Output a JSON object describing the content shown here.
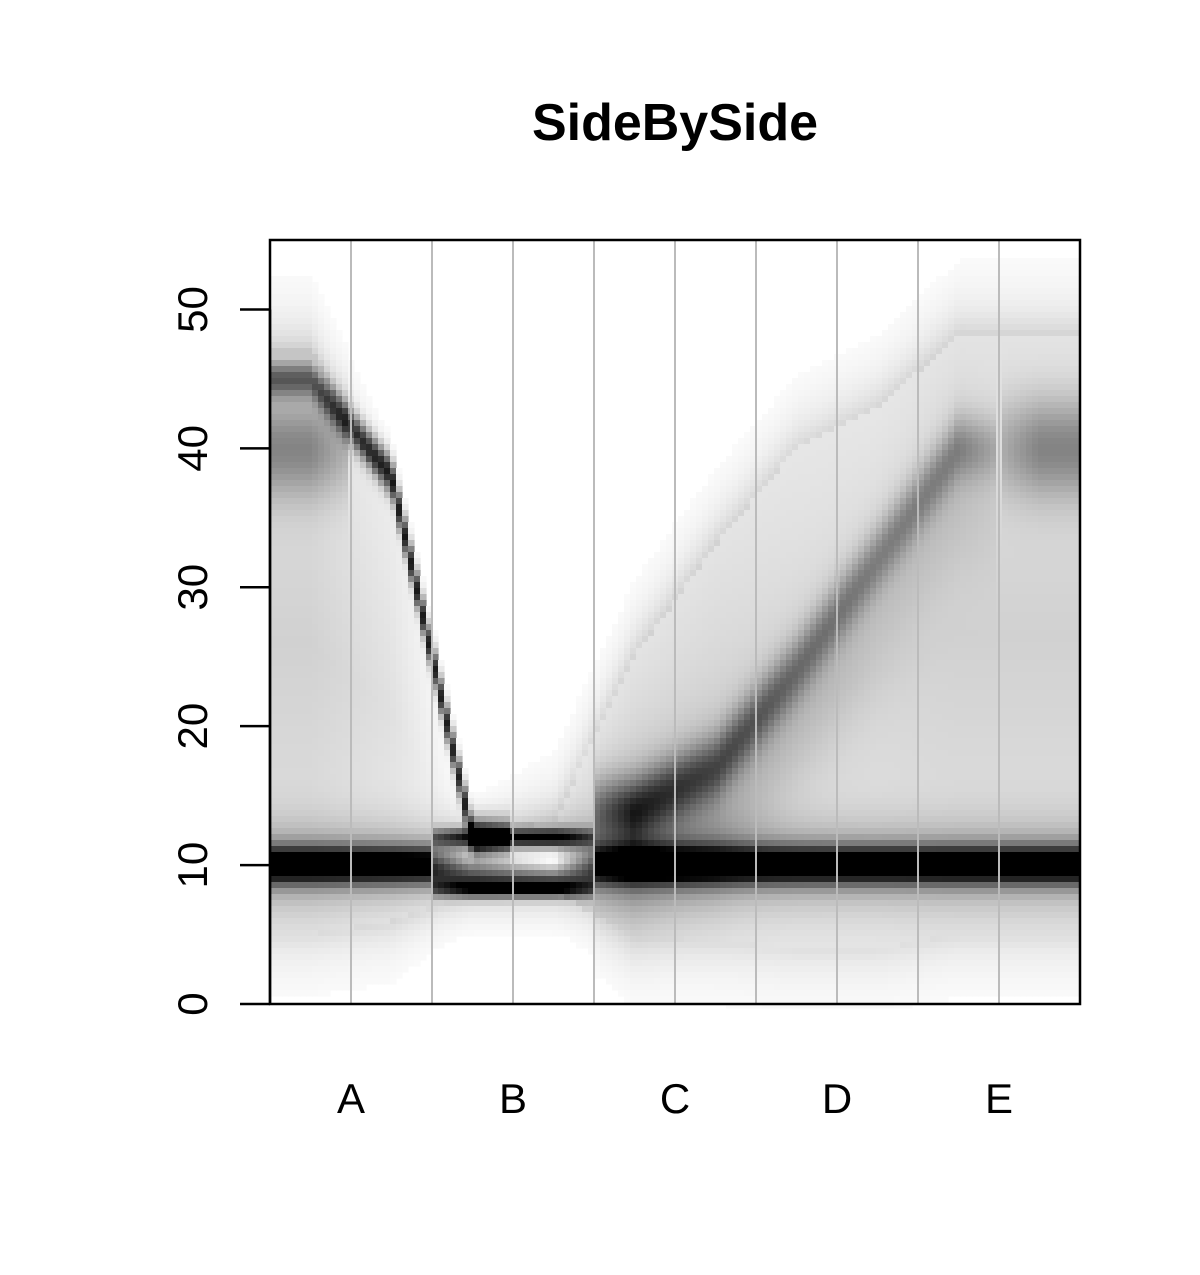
{
  "chart_data": {
    "type": "heatmap",
    "title": "SideBySide",
    "xlabel": "",
    "ylabel": "",
    "categories": [
      "A",
      "B",
      "C",
      "D",
      "E"
    ],
    "ylim": [
      0,
      55
    ],
    "yticks": [
      0,
      10,
      20,
      30,
      40,
      50
    ],
    "grid": "vertical lines between and at category centers",
    "colors": {
      "low": "#ffffff",
      "high": "#000000",
      "gridline": "#bbbbbb",
      "axis": "#000000"
    },
    "x_positions": [
      0,
      0.5,
      1,
      1.5,
      2,
      2.5,
      3,
      3.5,
      4,
      4.5
    ],
    "features": [
      {
        "name": "core band",
        "center": [
          10.0,
          10.0,
          10.0,
          10.0,
          10.0,
          10.0,
          10.0,
          10.0,
          10.0,
          10.0
        ],
        "intensity": [
          0.95,
          0.95,
          0.95,
          0.55,
          0.95,
          0.95,
          0.95,
          0.95,
          0.95,
          0.95
        ]
      },
      {
        "name": "hollow core (B)",
        "center": [
          null,
          null,
          10.3,
          10.3,
          null,
          null,
          null,
          null,
          null,
          null
        ],
        "intensity": [
          0,
          0,
          1,
          1,
          0,
          0,
          0,
          0,
          0,
          0
        ]
      },
      {
        "name": "upper ridge (B)",
        "center": [
          null,
          null,
          12.0,
          12.0,
          null,
          null,
          null,
          null,
          null,
          null
        ],
        "intensity": [
          0,
          0,
          0.8,
          0.8,
          0,
          0,
          0,
          0,
          0,
          0
        ]
      },
      {
        "name": "lower ridge (B)",
        "center": [
          null,
          null,
          8.3,
          8.3,
          null,
          null,
          null,
          null,
          null,
          null
        ],
        "intensity": [
          0,
          0,
          0.8,
          0.8,
          0,
          0,
          0,
          0,
          0,
          0
        ]
      },
      {
        "name": "descending streak",
        "center": [
          45.0,
          38.0,
          12.0,
          null,
          null,
          null,
          null,
          null,
          null,
          null
        ],
        "intensity": [
          0.5,
          0.85,
          0.85,
          0,
          0,
          0,
          0,
          0,
          0,
          0
        ]
      },
      {
        "name": "upper band",
        "center": [
          40.0,
          null,
          null,
          null,
          null,
          null,
          null,
          null,
          null,
          40.0
        ],
        "intensity": [
          0.35,
          0,
          0,
          0,
          0,
          0,
          0,
          0,
          0,
          0.35
        ]
      },
      {
        "name": "secondary streak",
        "center": [
          null,
          null,
          null,
          null,
          14.0,
          17.0,
          24.0,
          32.0,
          40.0,
          null
        ],
        "intensity": [
          0,
          0,
          0,
          0,
          0.55,
          0.45,
          0.35,
          0.3,
          0.3,
          0
        ]
      },
      {
        "name": "diffuse upper edge",
        "center": [
          47.0,
          36.0,
          12.5,
          13.0,
          25.0,
          33.0,
          40.0,
          43.0,
          48.0,
          48.0
        ],
        "intensity": [
          0.18,
          0.12,
          0,
          0.15,
          0.18,
          0.18,
          0.16,
          0.16,
          0.18,
          0.18
        ]
      },
      {
        "name": "diffuse lower edge",
        "center": [
          5.0,
          6.0,
          8.0,
          8.0,
          5.0,
          4.5,
          4.0,
          4.0,
          5.0,
          5.0
        ],
        "intensity": [
          0.12,
          0.12,
          0,
          0,
          0.12,
          0.12,
          0.12,
          0.12,
          0.12,
          0.12
        ]
      }
    ]
  }
}
